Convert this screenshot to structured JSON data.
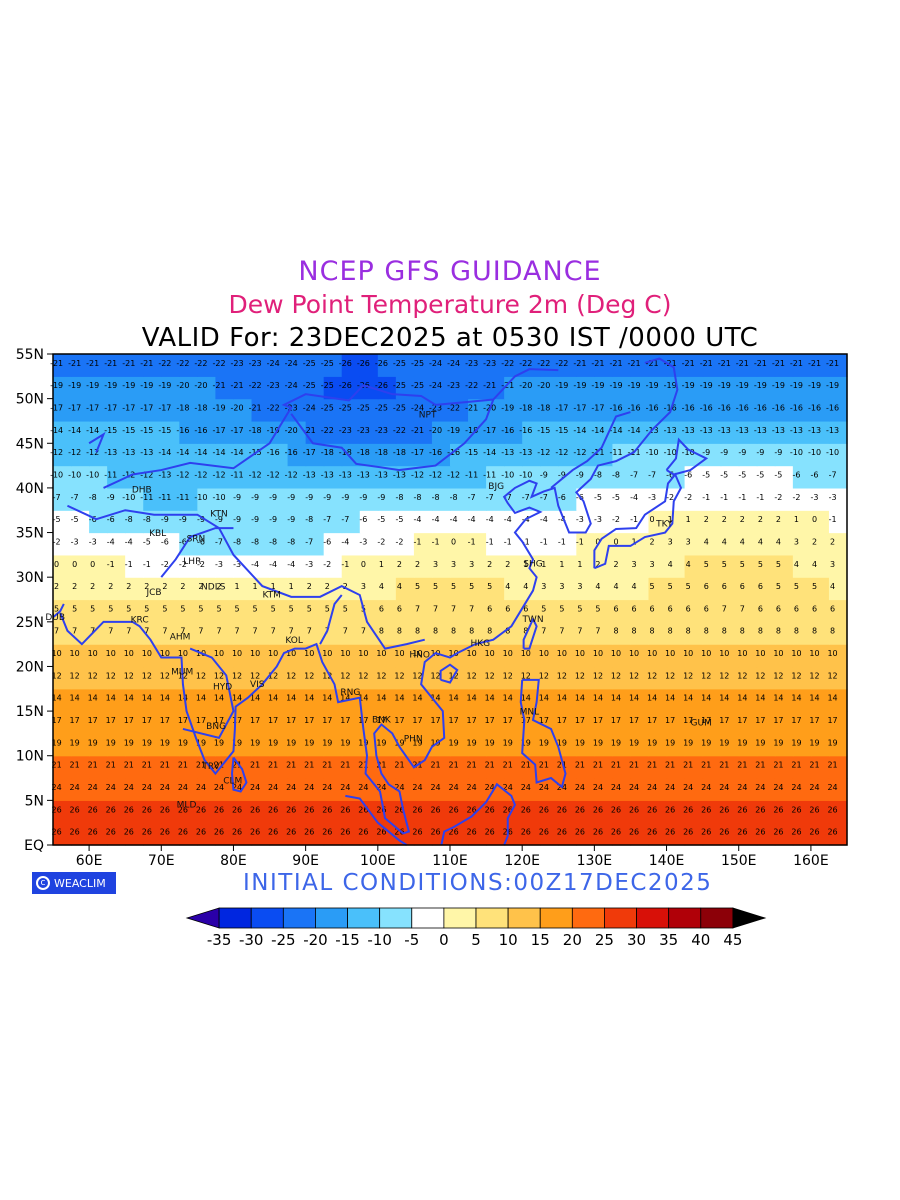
{
  "titles": {
    "line1": "NCEP GFS GUIDANCE",
    "line2": "Dew Point Temperature 2m (Deg C)",
    "line3": "VALID For: 23DEC2025 at 0530 IST /0000 UTC"
  },
  "initial_conditions": "INITIAL CONDITIONS:00Z17DEC2025",
  "logo": {
    "text": "WEACLIM",
    "icon": "copyright-circle-icon"
  },
  "map": {
    "projection": "lat-lon",
    "lon_range": [
      55,
      165
    ],
    "lat_range": [
      0,
      55
    ],
    "lat_ticks": [
      "EQ",
      "5N",
      "10N",
      "15N",
      "20N",
      "25N",
      "30N",
      "35N",
      "40N",
      "45N",
      "50N",
      "55N"
    ],
    "lon_ticks": [
      "60E",
      "70E",
      "80E",
      "90E",
      "100E",
      "110E",
      "120E",
      "130E",
      "140E",
      "150E",
      "160E"
    ],
    "field": "dew point temperature at 2 m",
    "units": "Deg C"
  },
  "colorbar": {
    "labels": [
      "-35",
      "-30",
      "-25",
      "-20",
      "-15",
      "-10",
      "-5",
      "0",
      "5",
      "10",
      "15",
      "20",
      "25",
      "30",
      "35",
      "40",
      "45"
    ],
    "colors": [
      "#2a00a8",
      "#0026e0",
      "#0a4cf2",
      "#1a74f6",
      "#2a9cf6",
      "#4ac0fa",
      "#86e2fe",
      "#ffffff",
      "#fff6a8",
      "#ffe27a",
      "#ffc24a",
      "#ff9e1a",
      "#ff6a10",
      "#f03a0a",
      "#d81008",
      "#b00008",
      "#8c0008",
      "#000000"
    ]
  },
  "stations": [
    {
      "name": "DHB",
      "lon": 67.3,
      "lat": 39.5
    },
    {
      "name": "KBL",
      "lon": 69.5,
      "lat": 34.6
    },
    {
      "name": "SRN",
      "lon": 74.8,
      "lat": 34.0
    },
    {
      "name": "LHR",
      "lon": 74.3,
      "lat": 31.5
    },
    {
      "name": "KTN",
      "lon": 78.0,
      "lat": 36.8
    },
    {
      "name": "JCB",
      "lon": 69.0,
      "lat": 28.0
    },
    {
      "name": "NDLS",
      "lon": 77.2,
      "lat": 28.6
    },
    {
      "name": "KTM",
      "lon": 85.3,
      "lat": 27.7
    },
    {
      "name": "DUB",
      "lon": 55.3,
      "lat": 25.2
    },
    {
      "name": "KRC",
      "lon": 67.0,
      "lat": 24.9
    },
    {
      "name": "AHM",
      "lon": 72.6,
      "lat": 23.0
    },
    {
      "name": "KOL",
      "lon": 88.4,
      "lat": 22.6
    },
    {
      "name": "MUM",
      "lon": 72.9,
      "lat": 19.1
    },
    {
      "name": "HYD",
      "lon": 78.5,
      "lat": 17.4
    },
    {
      "name": "VIS",
      "lon": 83.3,
      "lat": 17.7
    },
    {
      "name": "RNG",
      "lon": 96.2,
      "lat": 16.8
    },
    {
      "name": "BNG",
      "lon": 77.6,
      "lat": 13.0
    },
    {
      "name": "TRV",
      "lon": 76.9,
      "lat": 8.5
    },
    {
      "name": "CLM",
      "lon": 79.9,
      "lat": 6.9
    },
    {
      "name": "MLD",
      "lon": 73.5,
      "lat": 4.2
    },
    {
      "name": "BNK",
      "lon": 100.5,
      "lat": 13.7
    },
    {
      "name": "PHN",
      "lon": 104.9,
      "lat": 11.6
    },
    {
      "name": "HNO",
      "lon": 105.8,
      "lat": 21.0
    },
    {
      "name": "HKG",
      "lon": 114.2,
      "lat": 22.3
    },
    {
      "name": "TWN",
      "lon": 121.5,
      "lat": 25.0
    },
    {
      "name": "MNL",
      "lon": 121.0,
      "lat": 14.6
    },
    {
      "name": "SHG",
      "lon": 121.5,
      "lat": 31.2
    },
    {
      "name": "BJG",
      "lon": 116.4,
      "lat": 39.9
    },
    {
      "name": "TKY",
      "lon": 139.7,
      "lat": 35.7
    },
    {
      "name": "GUM",
      "lon": 144.8,
      "lat": 13.4
    },
    {
      "name": "NPT",
      "lon": 106.9,
      "lat": 47.9
    }
  ]
}
